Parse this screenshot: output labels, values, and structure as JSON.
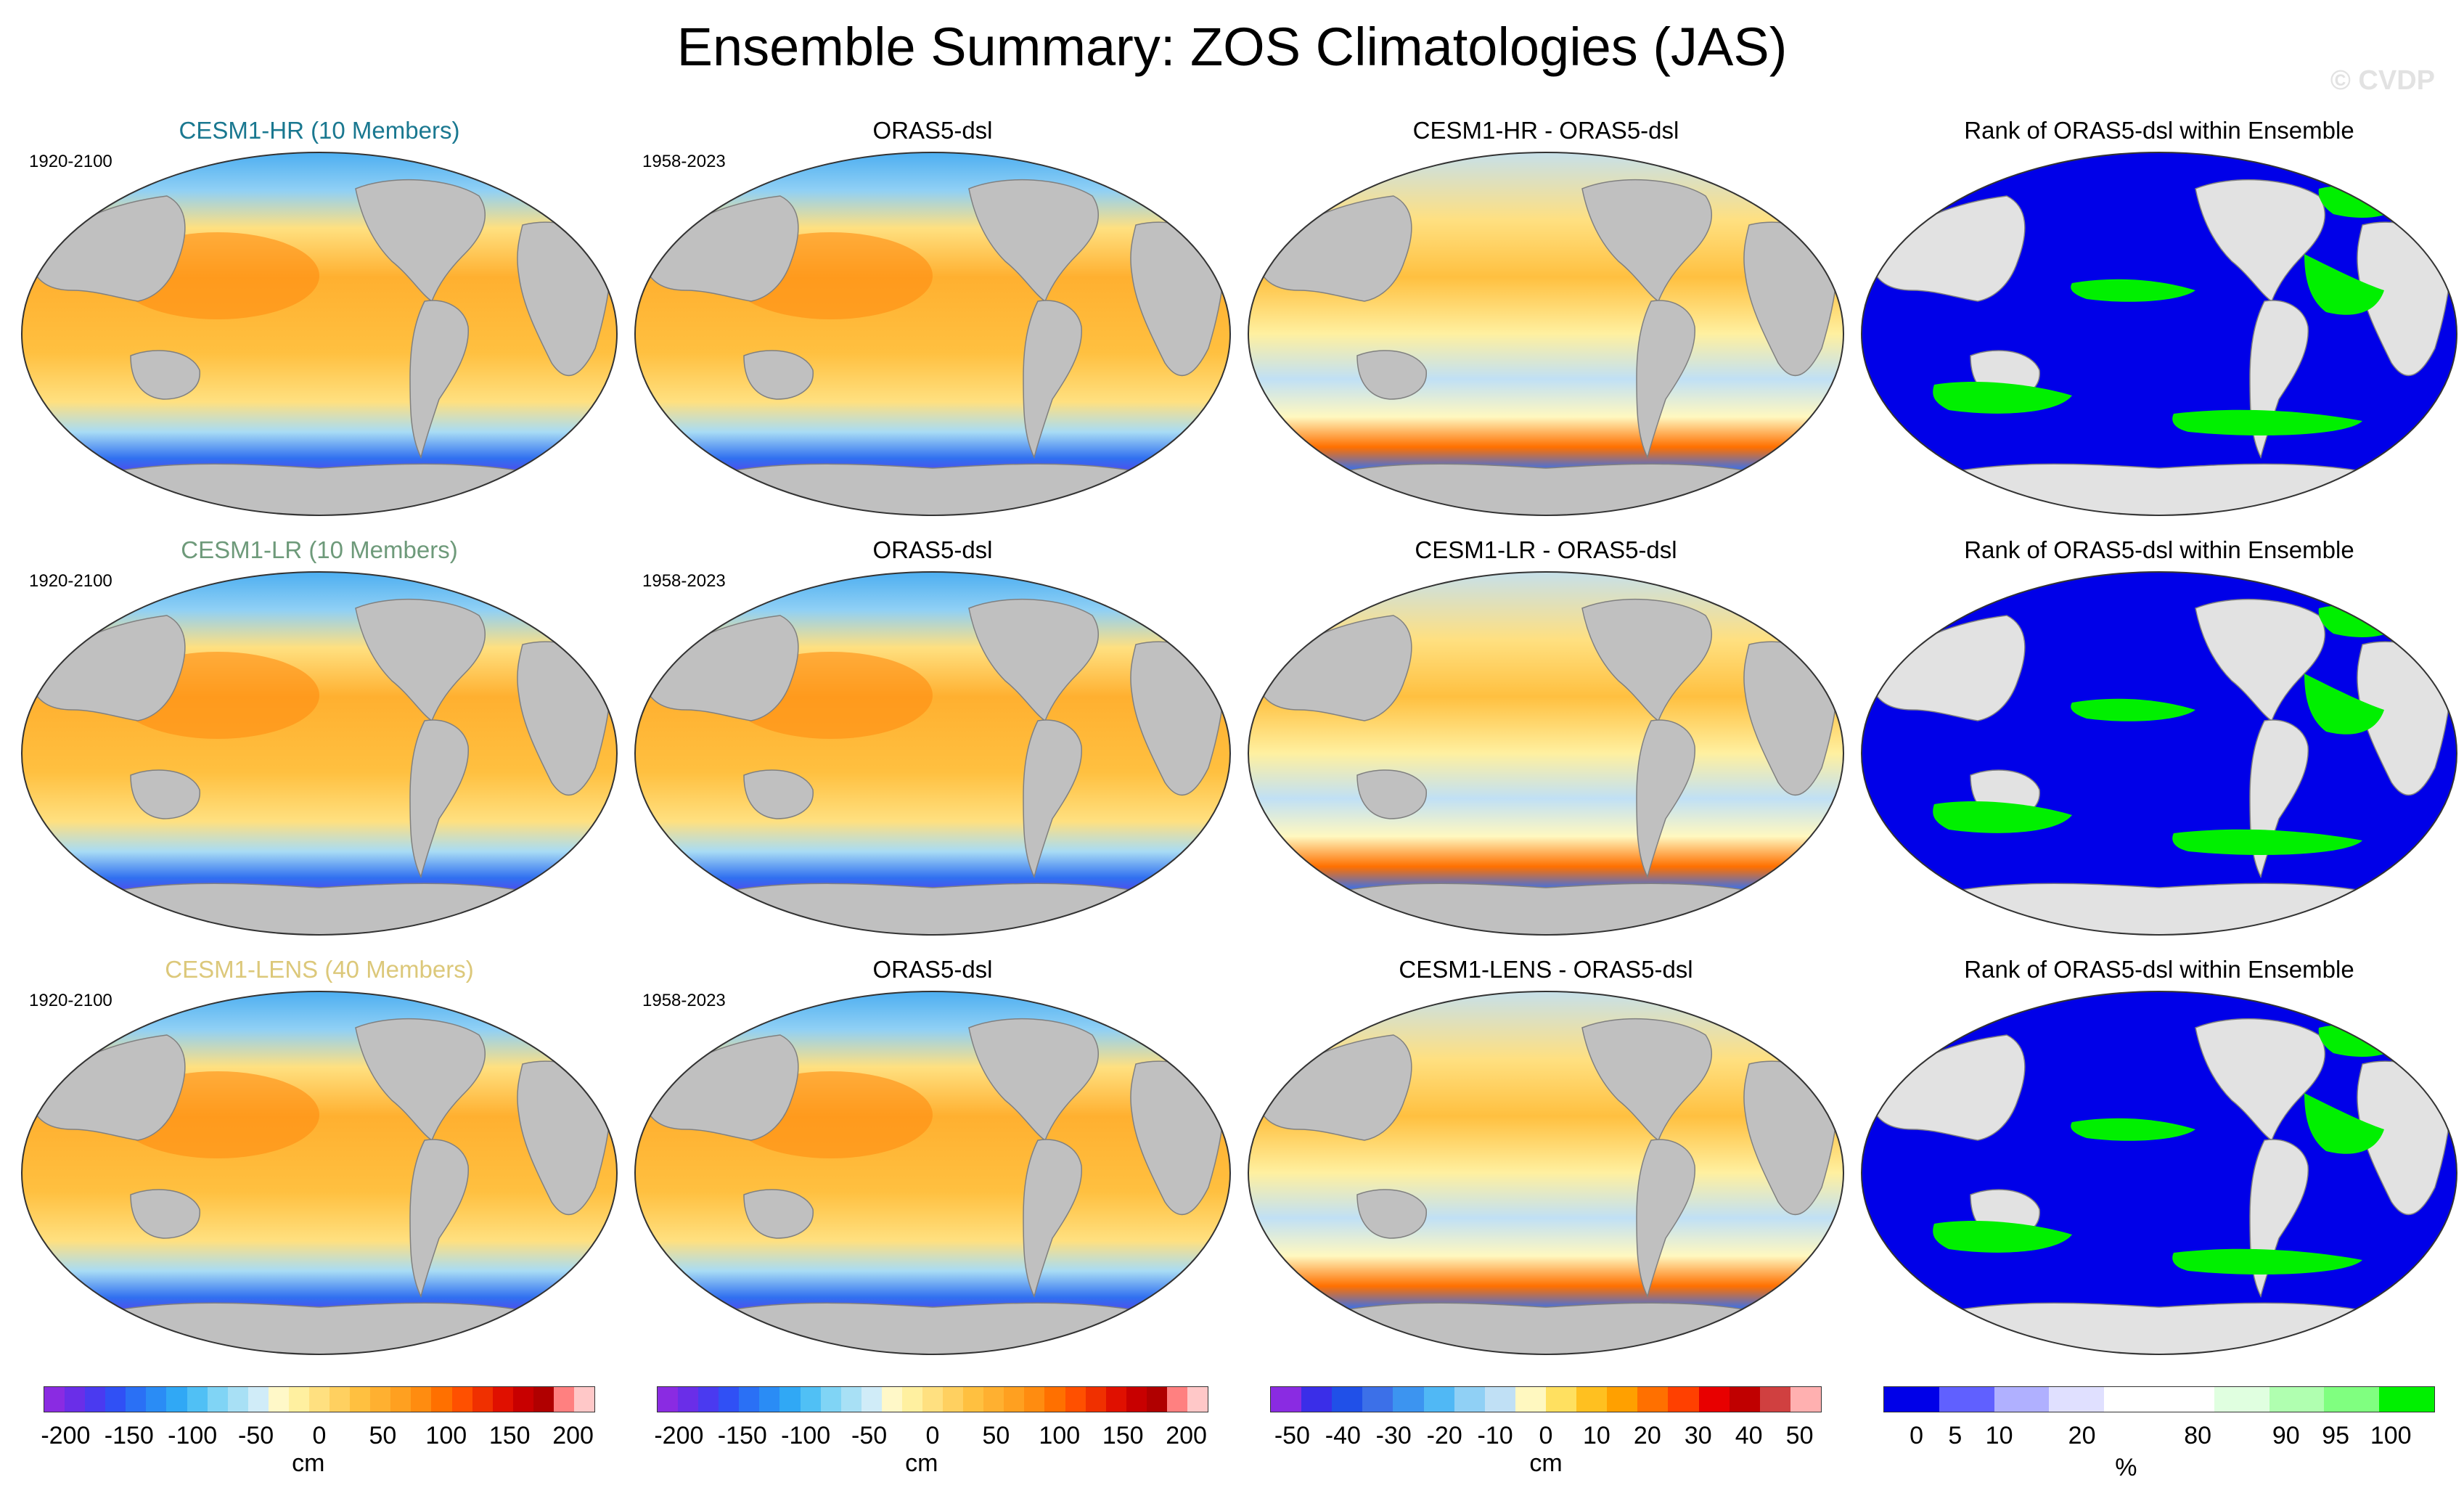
{
  "title": "Ensemble Summary: ZOS Climatologies (JAS)",
  "copyright": "© CVDP",
  "colors": {
    "land_dark": "#c0c0c0",
    "land_light": "#e2e2e2",
    "rank_low": "#0000e8",
    "rank_high": "#00f000",
    "model_hr": "#1a7890",
    "model_lr": "#6e9a7a",
    "model_lens": "#dcc87a"
  },
  "rows": [
    {
      "panels": [
        {
          "title": "CESM1-HR (10 Members)",
          "period": "1920-2100",
          "kind": "field",
          "title_color": "#1a7890"
        },
        {
          "title": "ORAS5-dsl",
          "period": "1958-2023",
          "kind": "field",
          "title_color": "#000000"
        },
        {
          "title": "CESM1-HR - ORAS5-dsl",
          "period": "",
          "kind": "diff",
          "title_color": "#000000"
        },
        {
          "title": "Rank of ORAS5-dsl within Ensemble",
          "period": "",
          "kind": "rank",
          "title_color": "#000000"
        }
      ]
    },
    {
      "panels": [
        {
          "title": "CESM1-LR (10 Members)",
          "period": "1920-2100",
          "kind": "field",
          "title_color": "#6e9a7a"
        },
        {
          "title": "ORAS5-dsl",
          "period": "1958-2023",
          "kind": "field",
          "title_color": "#000000"
        },
        {
          "title": "CESM1-LR - ORAS5-dsl",
          "period": "",
          "kind": "diff",
          "title_color": "#000000"
        },
        {
          "title": "Rank of ORAS5-dsl within Ensemble",
          "period": "",
          "kind": "rank",
          "title_color": "#000000"
        }
      ]
    },
    {
      "panels": [
        {
          "title": "CESM1-LENS (40 Members)",
          "period": "1920-2100",
          "kind": "field",
          "title_color": "#dcc87a"
        },
        {
          "title": "ORAS5-dsl",
          "period": "1958-2023",
          "kind": "field",
          "title_color": "#000000"
        },
        {
          "title": "CESM1-LENS - ORAS5-dsl",
          "period": "",
          "kind": "diff",
          "title_color": "#000000"
        },
        {
          "title": "Rank of ORAS5-dsl within Ensemble",
          "period": "",
          "kind": "rank",
          "title_color": "#000000"
        }
      ]
    }
  ],
  "colorbars": [
    {
      "unit": "cm",
      "ticks": [
        "-200",
        "-150",
        "-100",
        "-50",
        "0",
        "50",
        "100",
        "150",
        "200"
      ],
      "colors": [
        "#8a2be2",
        "#6a2ee8",
        "#4a3af0",
        "#3050f5",
        "#2a70f5",
        "#2a8cf5",
        "#30a8f5",
        "#50c0f5",
        "#80d4f5",
        "#a8e0f5",
        "#d0ecf8",
        "#fff8c8",
        "#fff0a0",
        "#ffe080",
        "#ffd060",
        "#ffc040",
        "#ffb030",
        "#ffa020",
        "#ff8c10",
        "#ff7000",
        "#ff5000",
        "#f03000",
        "#e01000",
        "#c80000",
        "#b00000",
        "#ff8080",
        "#ffc8c8"
      ]
    },
    {
      "unit": "cm",
      "ticks": [
        "-200",
        "-150",
        "-100",
        "-50",
        "0",
        "50",
        "100",
        "150",
        "200"
      ],
      "colors": [
        "#8a2be2",
        "#6a2ee8",
        "#4a3af0",
        "#3050f5",
        "#2a70f5",
        "#2a8cf5",
        "#30a8f5",
        "#50c0f5",
        "#80d4f5",
        "#a8e0f5",
        "#d0ecf8",
        "#fff8c8",
        "#fff0a0",
        "#ffe080",
        "#ffd060",
        "#ffc040",
        "#ffb030",
        "#ffa020",
        "#ff8c10",
        "#ff7000",
        "#ff5000",
        "#f03000",
        "#e01000",
        "#c80000",
        "#b00000",
        "#ff8080",
        "#ffc8c8"
      ]
    },
    {
      "unit": "cm",
      "ticks": [
        "-50",
        "-40",
        "-30",
        "-20",
        "-10",
        "0",
        "10",
        "20",
        "30",
        "40",
        "50"
      ],
      "colors": [
        "#8a2be2",
        "#3a2ee8",
        "#2050e8",
        "#3c70e8",
        "#3c94f0",
        "#50b8f5",
        "#90d0f5",
        "#c0e0f5",
        "#fff8c0",
        "#ffe060",
        "#ffc020",
        "#ffa000",
        "#ff7000",
        "#ff4000",
        "#e80000",
        "#c00000",
        "#d04040",
        "#ffb0b0"
      ]
    },
    {
      "unit": "%",
      "ticks": [
        "0",
        "5",
        "10",
        "20",
        "80",
        "90",
        "95",
        "100"
      ],
      "colors": [
        "#0000e8",
        "#6060ff",
        "#b0b0ff",
        "#e0e0ff",
        "#ffffff",
        "#ffffff",
        "#e0ffe0",
        "#b0ffb0",
        "#80ff80",
        "#00f000"
      ]
    }
  ]
}
